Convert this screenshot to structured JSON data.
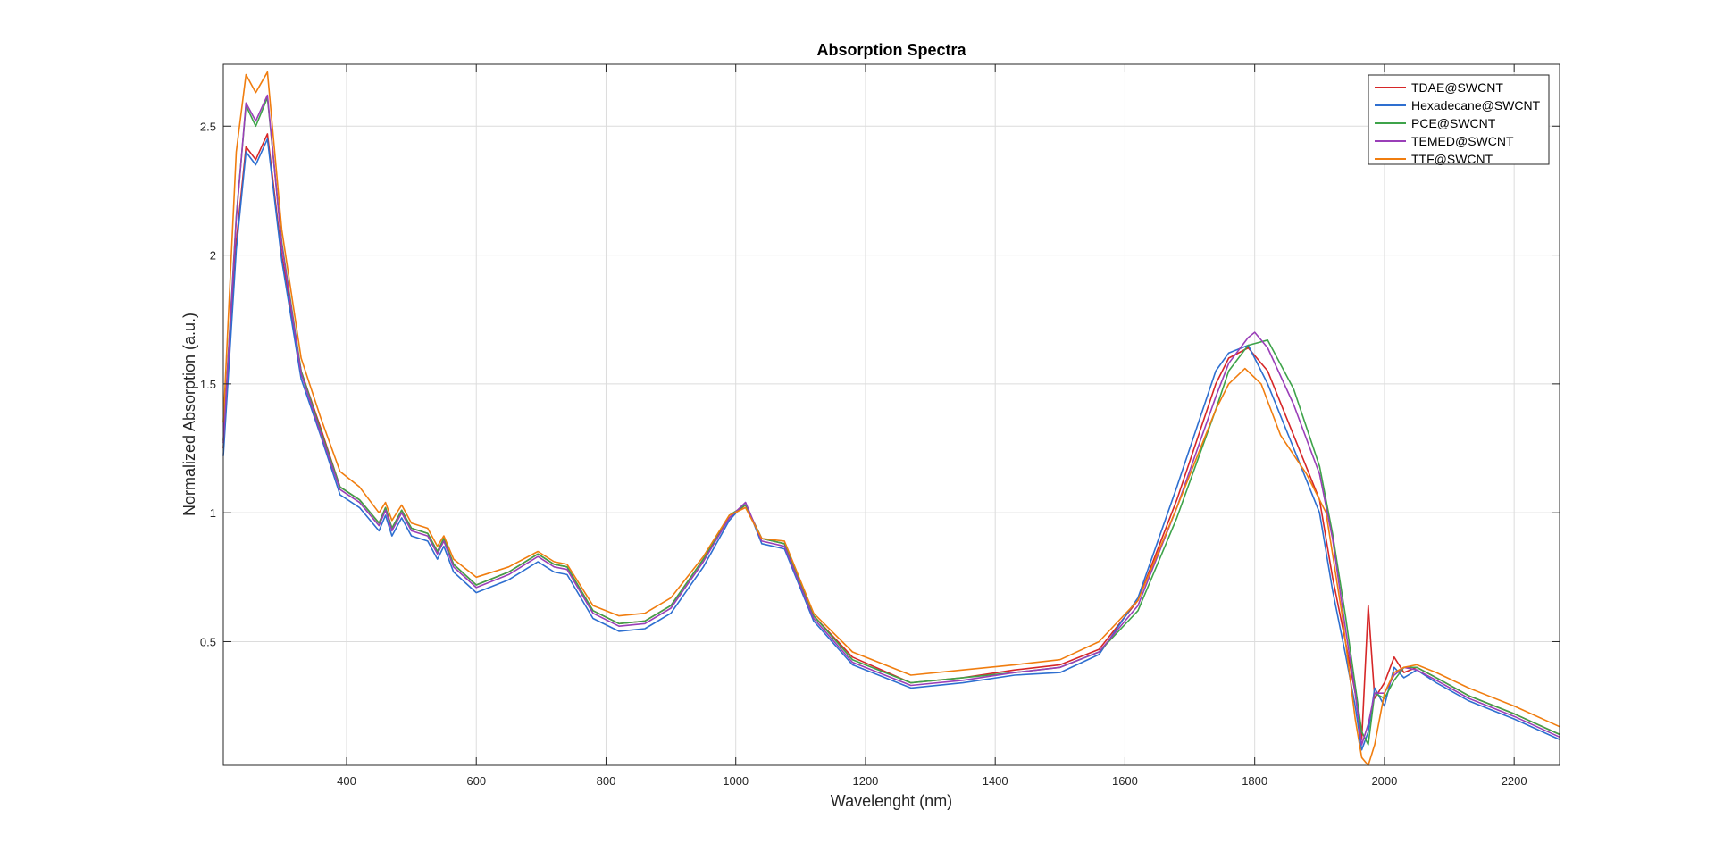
{
  "chart_data": {
    "type": "line",
    "title": "Absorption Spectra",
    "xlabel": "Wavelenght (nm)",
    "ylabel": "Normalized Absorption (a.u.)",
    "xlim": [
      210,
      2270
    ],
    "ylim": [
      0.02,
      2.74
    ],
    "xticks": [
      400,
      600,
      800,
      1000,
      1200,
      1400,
      1600,
      1800,
      2000,
      2200
    ],
    "xtick_labels": [
      "400",
      "600",
      "800",
      "1000",
      "1200",
      "1400",
      "1600",
      "1800",
      "2000",
      "2200"
    ],
    "yticks": [
      0.5,
      1,
      1.5,
      2,
      2.5
    ],
    "ytick_labels": [
      "0.5",
      "1",
      "1.5",
      "2",
      "2.5"
    ],
    "grid": true,
    "legend_position": "top-right",
    "series": [
      {
        "name": "TDAE@SWCNT",
        "color": "#d62728",
        "x": [
          210,
          230,
          245,
          260,
          278,
          300,
          330,
          360,
          390,
          420,
          450,
          460,
          470,
          485,
          500,
          525,
          540,
          550,
          565,
          600,
          650,
          695,
          720,
          740,
          780,
          820,
          860,
          900,
          950,
          990,
          1015,
          1040,
          1075,
          1120,
          1180,
          1270,
          1350,
          1430,
          1500,
          1560,
          1620,
          1680,
          1740,
          1760,
          1790,
          1820,
          1860,
          1900,
          1920,
          1940,
          1955,
          1965,
          1975,
          1985,
          2000,
          2015,
          2030,
          2050,
          2080,
          2130,
          2200,
          2270
        ],
        "y": [
          1.25,
          2.05,
          2.42,
          2.37,
          2.47,
          2.0,
          1.55,
          1.33,
          1.1,
          1.05,
          0.96,
          1.02,
          0.94,
          1.01,
          0.94,
          0.92,
          0.85,
          0.9,
          0.8,
          0.72,
          0.77,
          0.84,
          0.8,
          0.79,
          0.62,
          0.57,
          0.58,
          0.64,
          0.82,
          0.98,
          1.03,
          0.9,
          0.88,
          0.6,
          0.44,
          0.34,
          0.36,
          0.39,
          0.41,
          0.47,
          0.66,
          1.05,
          1.5,
          1.6,
          1.64,
          1.55,
          1.3,
          1.05,
          0.75,
          0.5,
          0.3,
          0.12,
          0.64,
          0.28,
          0.34,
          0.44,
          0.38,
          0.4,
          0.36,
          0.29,
          0.22,
          0.14
        ]
      },
      {
        "name": "Hexadecane@SWCNT",
        "color": "#2e6fd0",
        "x": [
          210,
          230,
          245,
          260,
          278,
          300,
          330,
          360,
          390,
          420,
          450,
          460,
          470,
          485,
          500,
          525,
          540,
          550,
          565,
          600,
          650,
          695,
          720,
          740,
          780,
          820,
          860,
          900,
          950,
          990,
          1015,
          1040,
          1075,
          1120,
          1180,
          1270,
          1350,
          1430,
          1500,
          1560,
          1620,
          1680,
          1740,
          1760,
          1790,
          1820,
          1860,
          1900,
          1920,
          1940,
          1955,
          1965,
          1975,
          1985,
          2000,
          2015,
          2030,
          2050,
          2080,
          2130,
          2200,
          2270
        ],
        "y": [
          1.22,
          2.02,
          2.4,
          2.35,
          2.45,
          1.98,
          1.52,
          1.3,
          1.07,
          1.02,
          0.93,
          0.99,
          0.91,
          0.98,
          0.91,
          0.89,
          0.82,
          0.87,
          0.77,
          0.69,
          0.74,
          0.81,
          0.77,
          0.76,
          0.59,
          0.54,
          0.55,
          0.61,
          0.79,
          0.97,
          1.04,
          0.88,
          0.86,
          0.58,
          0.41,
          0.32,
          0.34,
          0.37,
          0.38,
          0.45,
          0.67,
          1.1,
          1.55,
          1.62,
          1.65,
          1.5,
          1.25,
          1.0,
          0.7,
          0.45,
          0.25,
          0.08,
          0.15,
          0.32,
          0.25,
          0.4,
          0.36,
          0.39,
          0.34,
          0.27,
          0.2,
          0.12
        ]
      },
      {
        "name": "PCE@SWCNT",
        "color": "#3ea34a",
        "x": [
          210,
          230,
          245,
          260,
          278,
          300,
          330,
          360,
          390,
          420,
          450,
          460,
          470,
          485,
          500,
          525,
          540,
          550,
          565,
          600,
          650,
          695,
          720,
          740,
          780,
          820,
          860,
          900,
          950,
          990,
          1015,
          1040,
          1075,
          1120,
          1180,
          1270,
          1350,
          1430,
          1500,
          1560,
          1620,
          1680,
          1740,
          1760,
          1790,
          1820,
          1860,
          1900,
          1920,
          1940,
          1955,
          1965,
          1975,
          1985,
          2000,
          2015,
          2030,
          2050,
          2080,
          2130,
          2200,
          2270
        ],
        "y": [
          1.28,
          2.15,
          2.58,
          2.5,
          2.61,
          2.05,
          1.55,
          1.32,
          1.1,
          1.05,
          0.96,
          1.02,
          0.94,
          1.01,
          0.94,
          0.92,
          0.85,
          0.9,
          0.8,
          0.72,
          0.77,
          0.84,
          0.8,
          0.79,
          0.62,
          0.57,
          0.58,
          0.64,
          0.82,
          0.99,
          1.03,
          0.9,
          0.88,
          0.6,
          0.43,
          0.34,
          0.36,
          0.38,
          0.4,
          0.46,
          0.62,
          0.98,
          1.4,
          1.55,
          1.65,
          1.67,
          1.48,
          1.18,
          0.92,
          0.6,
          0.33,
          0.15,
          0.1,
          0.3,
          0.28,
          0.35,
          0.4,
          0.4,
          0.36,
          0.29,
          0.22,
          0.14
        ]
      },
      {
        "name": "TEMED@SWCNT",
        "color": "#9a3fb8",
        "x": [
          210,
          230,
          245,
          260,
          278,
          300,
          330,
          360,
          390,
          420,
          450,
          460,
          470,
          485,
          500,
          525,
          540,
          550,
          565,
          600,
          650,
          695,
          720,
          740,
          780,
          820,
          860,
          900,
          950,
          990,
          1015,
          1040,
          1075,
          1120,
          1180,
          1270,
          1350,
          1430,
          1500,
          1560,
          1620,
          1680,
          1740,
          1760,
          1790,
          1800,
          1820,
          1860,
          1900,
          1920,
          1940,
          1955,
          1965,
          1975,
          1985,
          2000,
          2015,
          2030,
          2050,
          2080,
          2130,
          2200,
          2270
        ],
        "y": [
          1.27,
          2.14,
          2.59,
          2.52,
          2.62,
          2.04,
          1.54,
          1.31,
          1.09,
          1.04,
          0.95,
          1.01,
          0.93,
          1.0,
          0.93,
          0.91,
          0.84,
          0.89,
          0.79,
          0.71,
          0.76,
          0.83,
          0.79,
          0.78,
          0.61,
          0.56,
          0.57,
          0.63,
          0.81,
          0.98,
          1.04,
          0.89,
          0.87,
          0.59,
          0.42,
          0.33,
          0.35,
          0.38,
          0.4,
          0.46,
          0.64,
          1.02,
          1.45,
          1.58,
          1.68,
          1.7,
          1.64,
          1.42,
          1.15,
          0.9,
          0.55,
          0.3,
          0.1,
          0.18,
          0.3,
          0.3,
          0.37,
          0.4,
          0.39,
          0.35,
          0.28,
          0.21,
          0.13
        ]
      },
      {
        "name": "TTF@SWCNT",
        "color": "#f07d0f",
        "x": [
          210,
          230,
          245,
          260,
          278,
          300,
          330,
          360,
          390,
          420,
          450,
          460,
          470,
          485,
          500,
          525,
          540,
          550,
          565,
          600,
          650,
          695,
          720,
          740,
          780,
          820,
          860,
          900,
          950,
          990,
          1015,
          1040,
          1075,
          1120,
          1180,
          1270,
          1350,
          1430,
          1500,
          1560,
          1620,
          1680,
          1740,
          1760,
          1785,
          1810,
          1840,
          1880,
          1910,
          1935,
          1955,
          1965,
          1975,
          1985,
          2000,
          2015,
          2030,
          2050,
          2080,
          2130,
          2200,
          2270
        ],
        "y": [
          1.35,
          2.4,
          2.7,
          2.63,
          2.71,
          2.1,
          1.6,
          1.37,
          1.16,
          1.1,
          1.0,
          1.04,
          0.97,
          1.03,
          0.96,
          0.94,
          0.87,
          0.91,
          0.82,
          0.75,
          0.79,
          0.85,
          0.81,
          0.8,
          0.64,
          0.6,
          0.61,
          0.67,
          0.83,
          0.99,
          1.02,
          0.9,
          0.89,
          0.61,
          0.46,
          0.37,
          0.39,
          0.41,
          0.43,
          0.5,
          0.66,
          1.02,
          1.4,
          1.5,
          1.56,
          1.5,
          1.3,
          1.15,
          1.0,
          0.6,
          0.2,
          0.05,
          0.02,
          0.1,
          0.3,
          0.38,
          0.4,
          0.41,
          0.38,
          0.32,
          0.25,
          0.17
        ]
      }
    ]
  }
}
